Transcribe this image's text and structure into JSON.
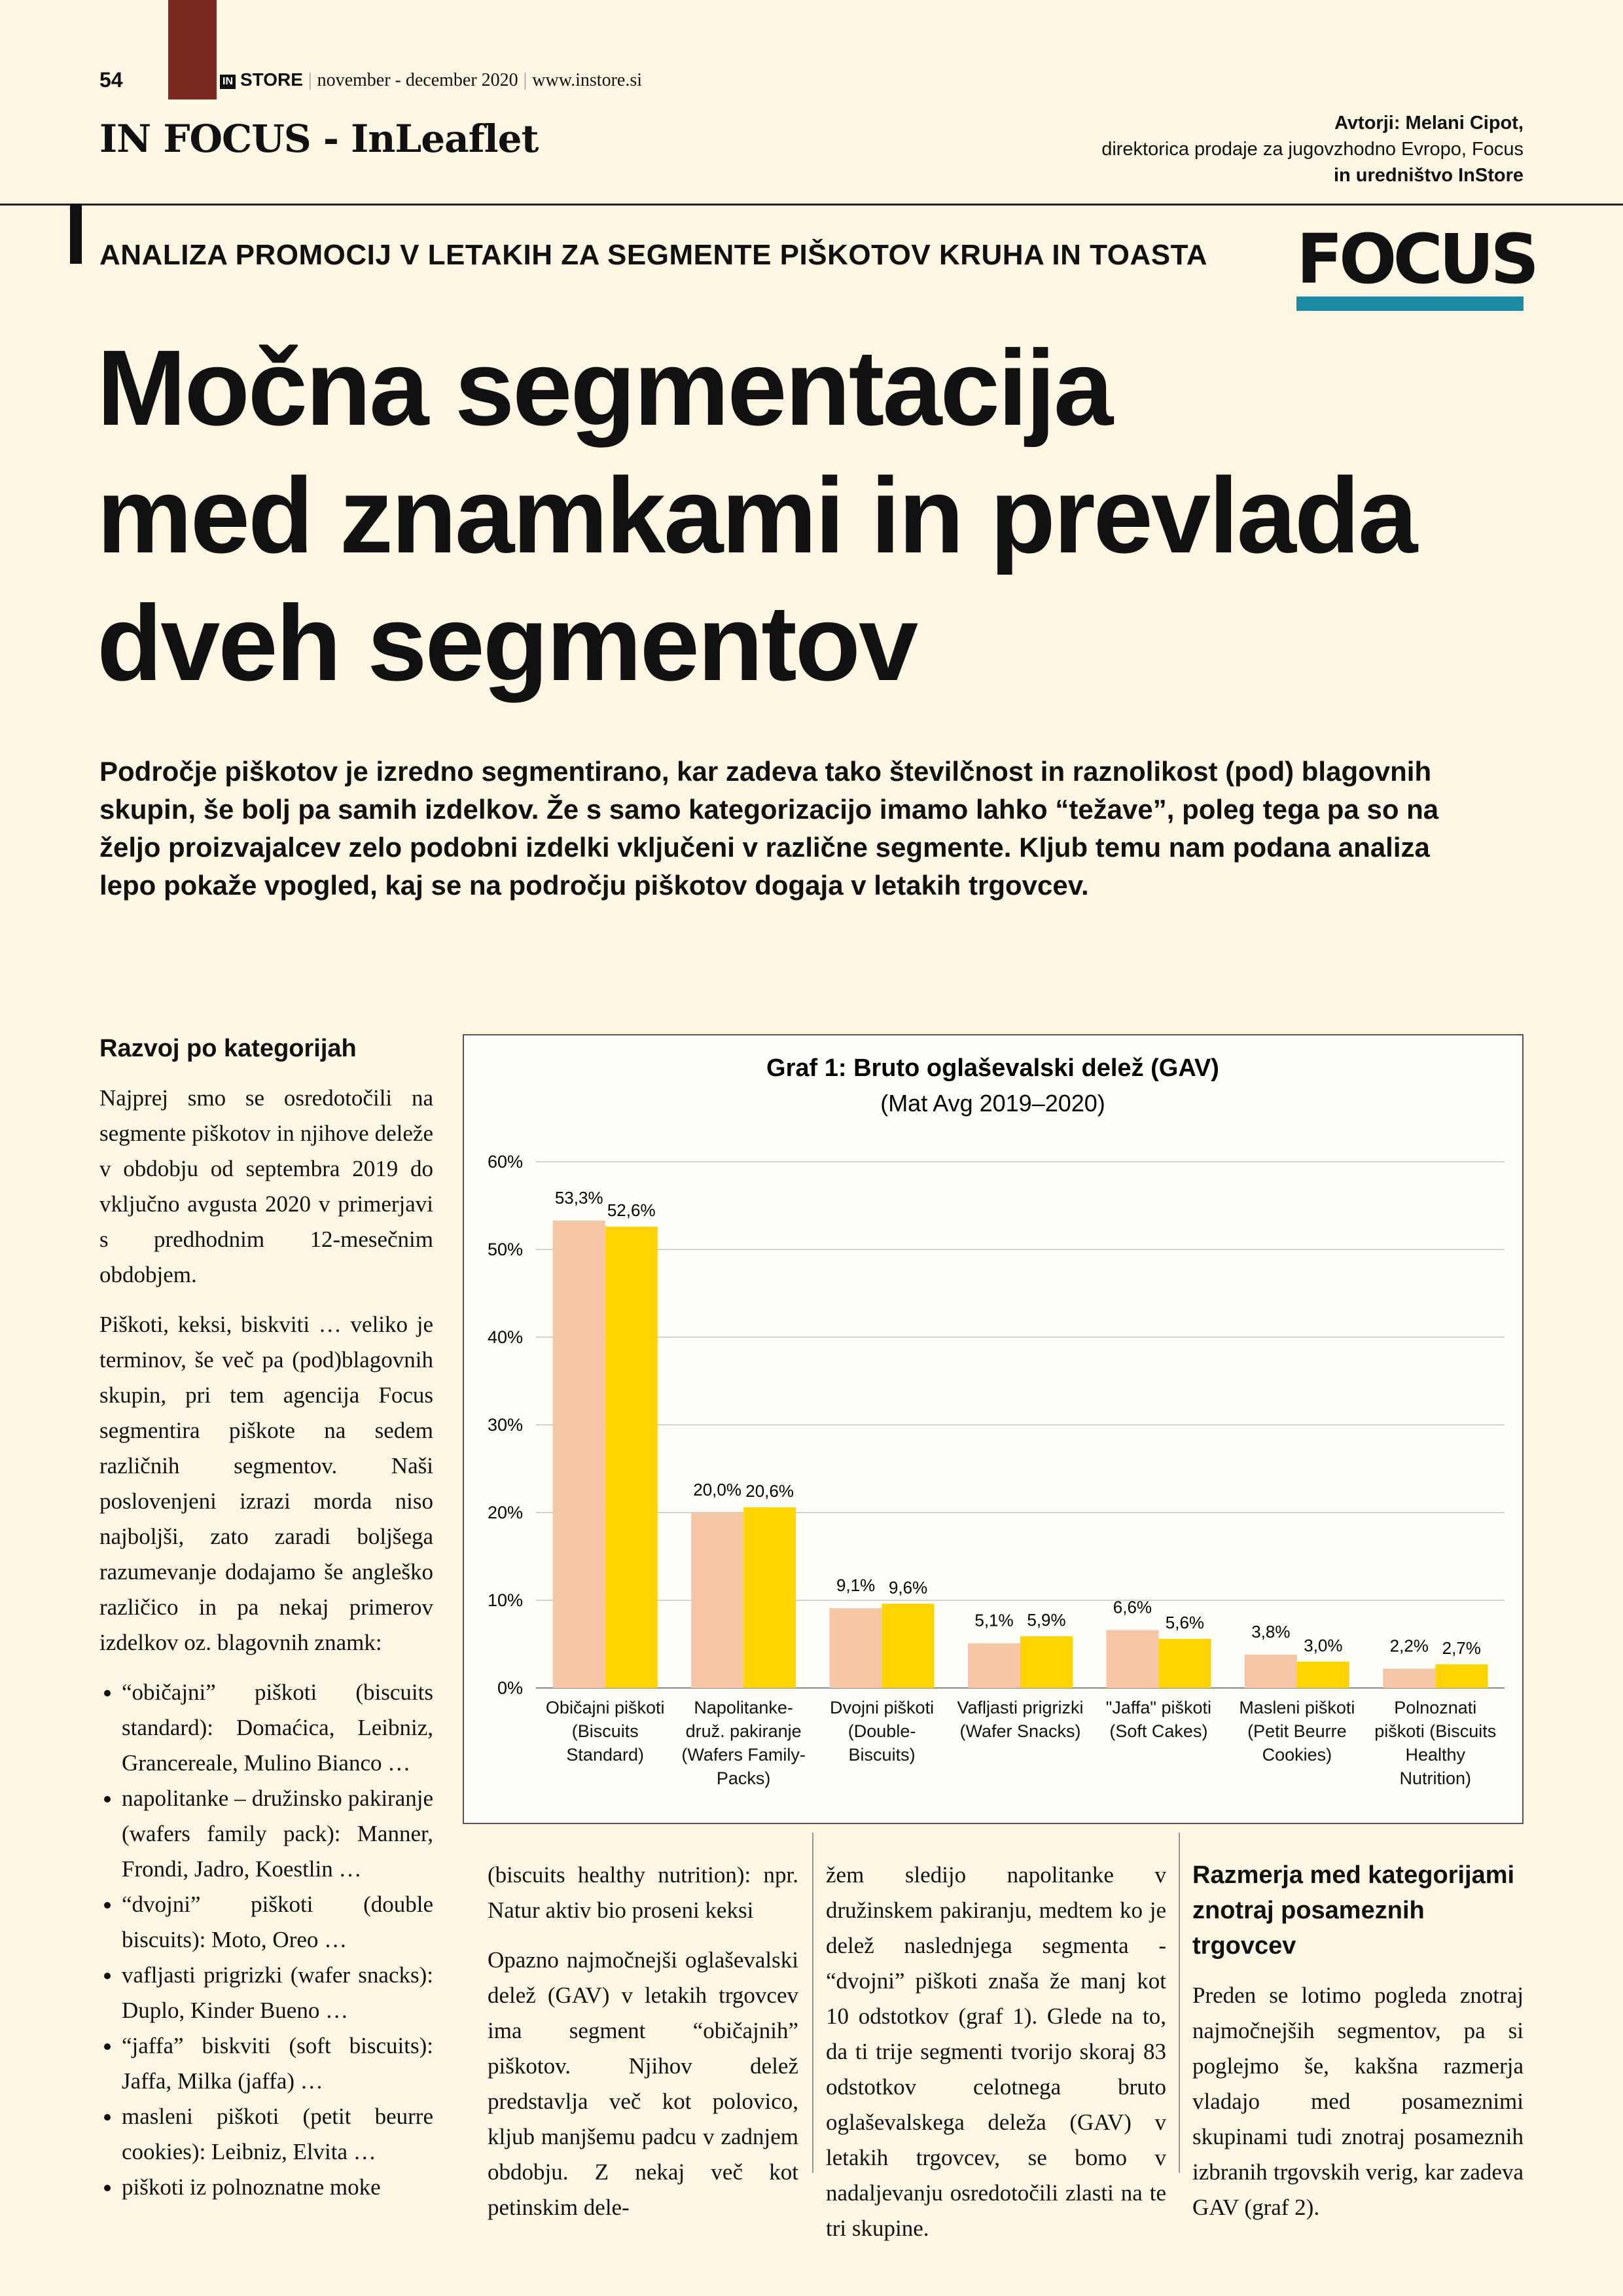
{
  "header": {
    "page_number": "54",
    "brand_small": "IN",
    "brand": "STORE",
    "issue": "november - december 2020",
    "website": "www.instore.si",
    "section": "IN FOCUS - InLeaflet",
    "authors": [
      "Avtorji: Melani Cipot,",
      "direktorica prodaje za jugovzhodno Evropo, Focus",
      "in uredništvo InStore"
    ]
  },
  "kicker": "ANALIZA PROMOCIJ V LETAKIH ZA SEGMENTE PIŠKOTOV KRUHA IN TOASTA",
  "logo": "FOCUS",
  "title": [
    "Močna segmentacija",
    "med znamkami in prevlada",
    "dveh segmentov"
  ],
  "lead": "Področje piškotov je izredno segmentirano, kar zadeva tako številčnost in raznolikost (pod) blagovnih skupin, še bolj pa samih izdelkov. Že s samo kategorizacijo imamo lahko “težave”, poleg tega pa so na željo proizvajalcev zelo podobni izdelki vključeni v različne segmente. Kljub temu nam podana analiza lepo pokaže vpogled, kaj se na področju piškotov dogaja v letakih trgovcev.",
  "column1": {
    "heading": "Razvoj po kategorijah",
    "paragraphs": [
      "Najprej smo se osredotočili na segmente piškotov in njihove deleže v obdobju od septembra 2019 do vključno avgusta 2020 v primerjavi s predhodnim 12-mesečnim obdobjem.",
      "Piškoti, keksi, biskviti … veliko je terminov, še več pa (pod)blagovnih skupin, pri tem agencija Focus segmentira piškote na sedem različnih segmentov. Naši poslovenjeni izrazi morda niso najboljši, zato zaradi boljšega razumevanje dodajamo še angleško različico in pa nekaj primerov izdelkov oz. blagovnih znamk:"
    ],
    "bullets": [
      "“običajni” piškoti (biscuits standard): Domaćica, Leibniz, Grancereale, Mulino Bianco …",
      "napolitanke – družinsko pakiranje (wafers family pack): Manner, Frondi, Jadro, Koestlin …",
      "“dvojni” piškoti (double biscuits): Moto, Oreo …",
      "vafljasti prigrizki (wafer snacks): Duplo, Kinder Bueno …",
      "“jaffa” biskviti (soft biscuits): Jaffa, Milka (jaffa) …",
      "masleni piškoti (petit beurre cookies): Leibniz, Elvita …",
      "piškoti iz polnoznatne moke"
    ]
  },
  "column2": {
    "paragraphs": [
      "(biscuits healthy nutrition): npr. Natur aktiv bio proseni keksi",
      "Opazno najmočnejši oglaševalski delež (GAV) v letakih trgovcev ima segment “običajnih” piškotov. Njihov delež predstavlja več kot polovico, kljub manjšemu padcu v zadnjem obdobju. Z nekaj več kot petinskim dele-"
    ]
  },
  "column3": {
    "paragraphs": [
      "žem sledijo napolitanke v družinskem pakiranju, medtem ko je delež naslednjega segmenta - “dvojni” piškoti znaša že manj kot 10 odstotkov (graf 1). Glede na to, da ti trije segmenti tvorijo skoraj 83 odstotkov celotnega bruto oglaševalskega deleža (GAV) v letakih trgovcev, se bomo v nadaljevanju osredotočili zlasti na te tri skupine."
    ]
  },
  "column4": {
    "heading": "Razmerja med kategorijami znotraj posameznih trgovcev",
    "paragraphs": [
      "Preden se lotimo pogleda znotraj najmočnejših segmentov, pa si poglejmo še, kakšna razmerja vladajo med posameznimi skupinami tudi znotraj posameznih izbranih trgovskih verig, kar zadeva GAV (graf 2)."
    ]
  },
  "chart_data": {
    "type": "bar",
    "title": "Graf 1: Bruto oglaševalski delež (GAV)",
    "subtitle": "(Mat Avg 2019–2020)",
    "categories": [
      "Običajni piškoti (Biscuits Standard)",
      "Napolitanke-druž. pakiranje (Wafers Family-Packs)",
      "Dvojni piškoti (Double-Biscuits)",
      "Vafljasti prigrizki (Wafer Snacks)",
      "\"Jaffa\" piškoti (Soft Cakes)",
      "Masleni piškoti (Petit Beurre Cookies)",
      "Polnoznati piškoti (Biscuits Healthy Nutrition)"
    ],
    "series": [
      {
        "color": "#f6c7a6",
        "values": [
          53.3,
          20.0,
          9.1,
          5.1,
          6.6,
          3.8,
          2.2
        ],
        "value_labels": [
          "53,3%",
          "20,0%",
          "9,1%",
          "5,1%",
          "6,6%",
          "3,8%",
          "2,2%"
        ]
      },
      {
        "color": "#ffd400",
        "values": [
          52.6,
          20.6,
          9.6,
          5.9,
          5.6,
          3.0,
          2.7
        ],
        "value_labels": [
          "52,6%",
          "20,6%",
          "9,6%",
          "5,9%",
          "5,6%",
          "3,0%",
          "2,7%"
        ]
      }
    ],
    "ylim": [
      0,
      60
    ],
    "yticks": [
      {
        "value": 0,
        "label": "0%"
      },
      {
        "value": 10,
        "label": "10%"
      },
      {
        "value": 20,
        "label": "20%"
      },
      {
        "value": 30,
        "label": "30%"
      },
      {
        "value": 40,
        "label": "40%"
      },
      {
        "value": 50,
        "label": "50%"
      },
      {
        "value": 60,
        "label": "60%"
      }
    ],
    "grid": true
  }
}
